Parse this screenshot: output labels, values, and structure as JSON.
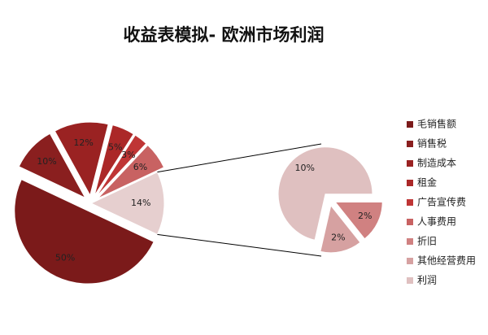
{
  "chart_data": {
    "type": "pie-of-pie",
    "title": "收益表模拟- 欧洲市场利润",
    "categories": [
      "毛销售额",
      "销售税",
      "制造成本",
      "租金",
      "广告宣传费",
      "人事费用",
      "折旧",
      "其他经营费用",
      "利润"
    ],
    "series": [
      {
        "values": [
          50,
          10,
          12,
          5,
          3,
          6,
          2,
          2,
          10
        ],
        "value_labels": [
          "50%",
          "10%",
          "12%",
          "5%",
          "3%",
          "6%",
          "2%",
          "2%",
          "10%"
        ],
        "colors": [
          "#7b1a1a",
          "#8a1f1f",
          "#9a2222",
          "#ab2828",
          "#bf3535",
          "#c86262",
          "#d08181",
          "#d6a1a1",
          "#dfc0c0"
        ]
      }
    ],
    "split_count": 3,
    "other": {
      "value": 14,
      "label": "14%"
    },
    "legend": "right"
  }
}
